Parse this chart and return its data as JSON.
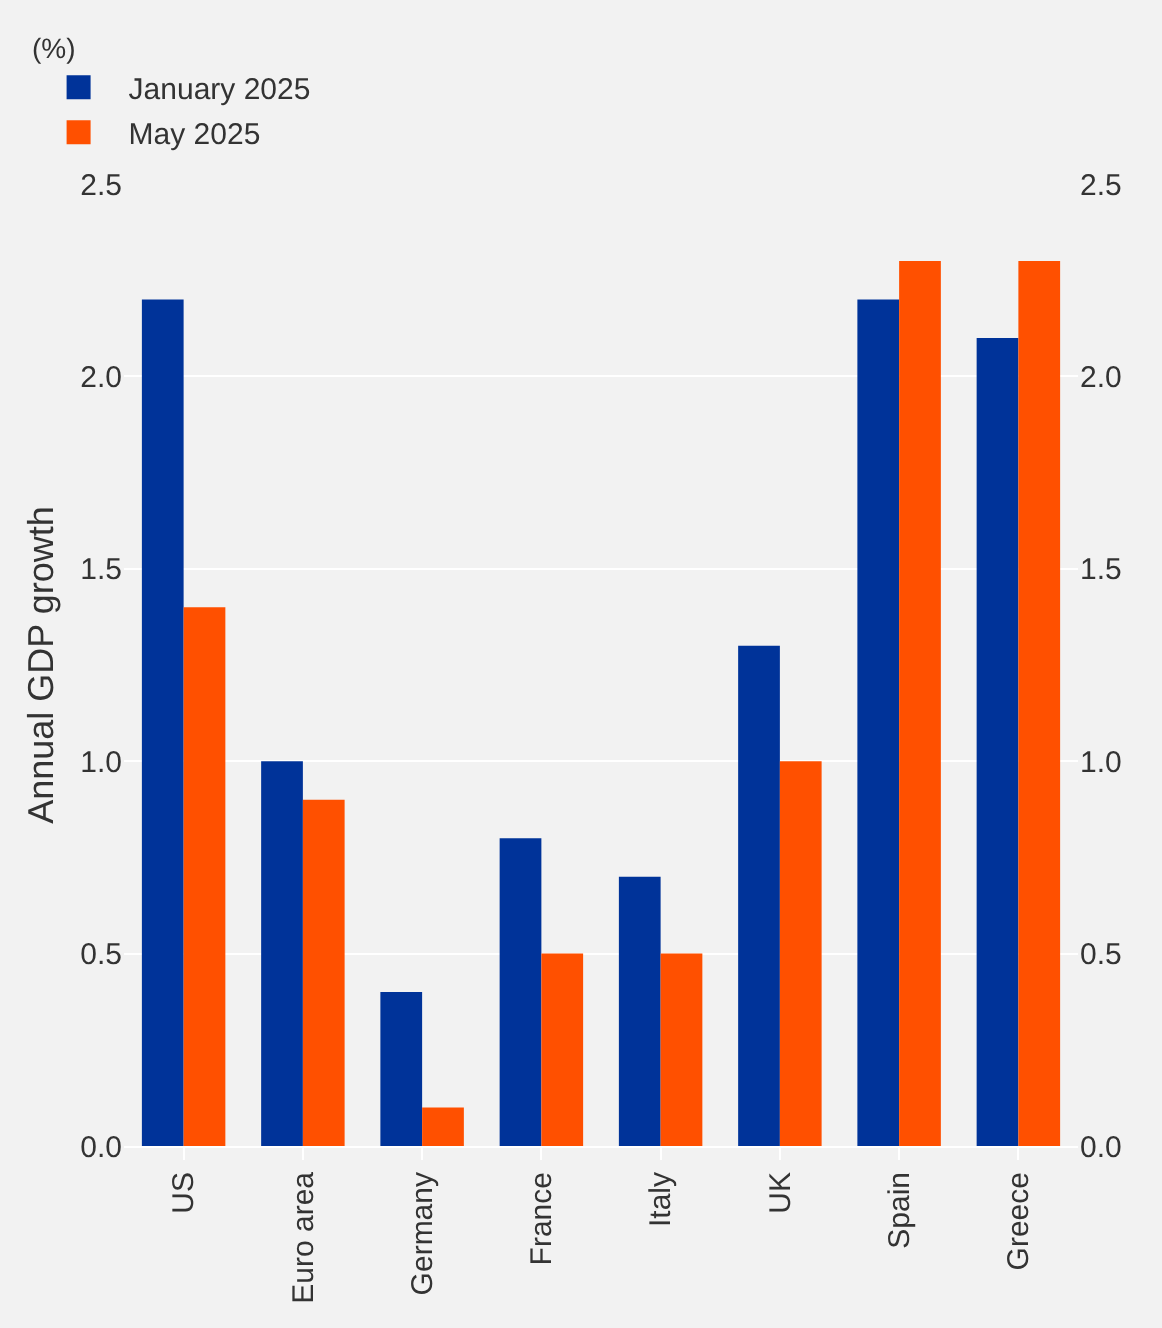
{
  "chart_data": {
    "type": "bar",
    "ylabel": "Annual GDP growth",
    "annotations": [
      "(%)"
    ],
    "categories": [
      "US",
      "Euro area",
      "Germany",
      "France",
      "Italy",
      "UK",
      "Spain",
      "Greece"
    ],
    "series": [
      {
        "name": "January 2025",
        "color": "#003399",
        "values": [
          2.2,
          1.0,
          0.4,
          0.8,
          0.7,
          1.3,
          2.2,
          2.1
        ]
      },
      {
        "name": "May 2025",
        "color": "#ff5000",
        "values": [
          1.4,
          0.9,
          0.1,
          0.5,
          0.5,
          1.0,
          2.3,
          2.3
        ]
      }
    ],
    "ylim": [
      0,
      2.5
    ],
    "yticks": [
      {
        "value": 0,
        "label": "0.0"
      },
      0.5,
      {
        "value": 1,
        "label": "1.0"
      },
      1.5,
      {
        "value": 2,
        "label": "2.0"
      },
      2.5
    ],
    "y2lim": [
      0,
      2.5
    ],
    "y2ticks": [
      {
        "value": 0,
        "label": "0.0"
      },
      0.5,
      {
        "value": 1,
        "label": "1.0"
      },
      1.5,
      {
        "value": 2,
        "label": "2.0"
      },
      2.5
    ],
    "grid": "y",
    "legend": "top left"
  }
}
